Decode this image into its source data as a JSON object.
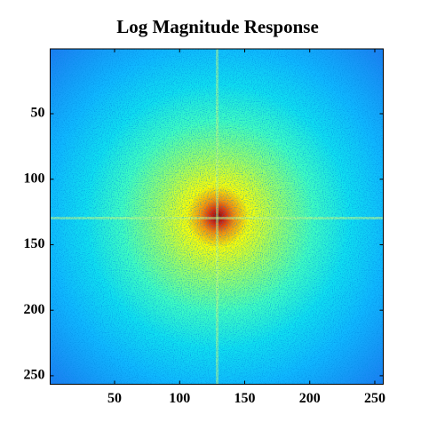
{
  "chart_data": {
    "type": "heatmap",
    "title": "Log Magnitude Response",
    "xlim": [
      0.5,
      256.5
    ],
    "ylim": [
      256.5,
      0.5
    ],
    "xticks": [
      50,
      100,
      150,
      200,
      250
    ],
    "yticks": [
      50,
      100,
      150,
      200,
      250
    ]
  }
}
